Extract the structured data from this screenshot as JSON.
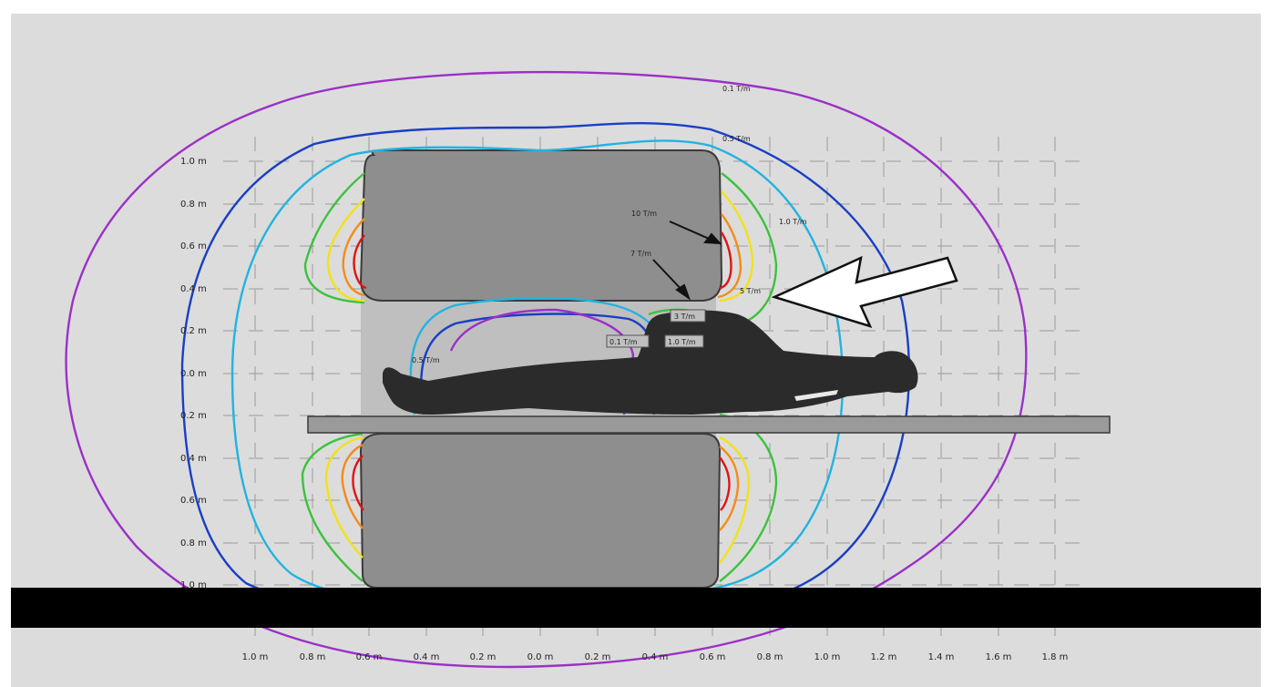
{
  "y_axis_labels": [
    "1.0 m",
    "0.8 m",
    "0.6 m",
    "0.4 m",
    "0.2 m",
    "0.0 m",
    "0.2 m",
    "0.4 m",
    "0.6 m",
    "0.8 m",
    "1.0 m"
  ],
  "x_axis_labels": [
    "1.0 m",
    "0.8 m",
    "0.6 m",
    "0.4 m",
    "0.2 m",
    "0.0 m",
    "0.2 m",
    "0.4 m",
    "0.6 m",
    "0.8 m",
    "1.0 m",
    "1.2 m",
    "1.4 m",
    "1.6 m",
    "1.8 m"
  ],
  "contour_labels": {
    "t01_outer": "0.1 T/m",
    "t05_outer": "0.5 T/m",
    "t1_outer": "1.0 T/m",
    "t10": "10 T/m",
    "t7": "7 T/m",
    "t5": "5 T/m",
    "t3": "3 T/m",
    "t01_inner": "0.1 T/m",
    "t1_inner": "1.0 T/m",
    "t05_inner": "0.5 T/m"
  },
  "colors": {
    "background": "#dcdcdc",
    "magnet": "#8e8e8e",
    "bore": "#bfbfbf",
    "table": "#9a9a9a",
    "floor": "#000000",
    "patient": "#2b2b2b",
    "t01": "#9b30c8",
    "t05": "#1a3fc4",
    "t1": "#22b3e0",
    "t3": "#3cc23c",
    "t5": "#f2e21a",
    "t7": "#f28c1a",
    "t10": "#e01414",
    "arrow": "#ffffff"
  }
}
